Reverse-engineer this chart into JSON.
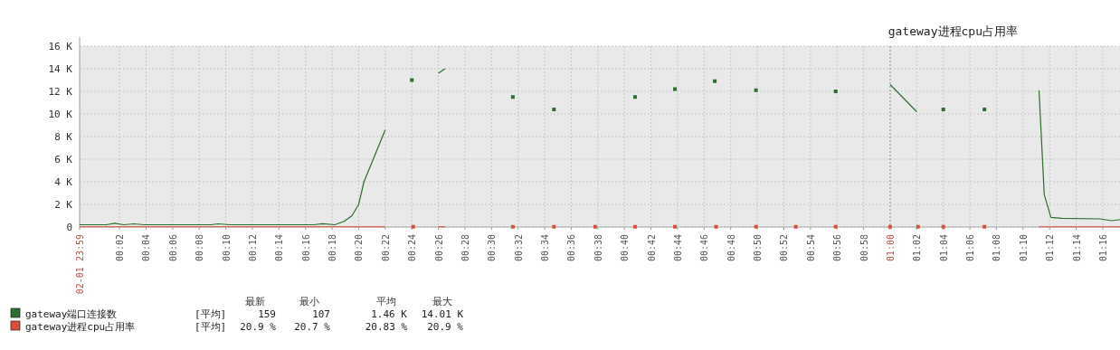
{
  "chart_data": {
    "type": "line",
    "title": "gateway进程cpu占用率",
    "xlim": [
      -0.0167,
      1.2883
    ],
    "xticks": [
      {
        "value": -0.0167,
        "label": "02-01 23:59"
      },
      {
        "value": 0.0333,
        "label": "00:02"
      },
      {
        "value": 0.0667,
        "label": "00:04"
      },
      {
        "value": 0.1,
        "label": "00:06"
      },
      {
        "value": 0.1333,
        "label": "00:08"
      },
      {
        "value": 0.1667,
        "label": "00:10"
      },
      {
        "value": 0.2,
        "label": "00:12"
      },
      {
        "value": 0.2333,
        "label": "00:14"
      },
      {
        "value": 0.2667,
        "label": "00:16"
      },
      {
        "value": 0.3,
        "label": "00:18"
      },
      {
        "value": 0.3333,
        "label": "00:20"
      },
      {
        "value": 0.3667,
        "label": "00:22"
      },
      {
        "value": 0.4,
        "label": "00:24"
      },
      {
        "value": 0.4333,
        "label": "00:26"
      },
      {
        "value": 0.4667,
        "label": "00:28"
      },
      {
        "value": 0.5,
        "label": "00:30"
      },
      {
        "value": 0.5333,
        "label": "00:32"
      },
      {
        "value": 0.5667,
        "label": "00:34"
      },
      {
        "value": 0.6,
        "label": "00:36"
      },
      {
        "value": 0.6333,
        "label": "00:38"
      },
      {
        "value": 0.6667,
        "label": "00:40"
      },
      {
        "value": 0.7,
        "label": "00:42"
      },
      {
        "value": 0.7333,
        "label": "00:44"
      },
      {
        "value": 0.7667,
        "label": "00:46"
      },
      {
        "value": 0.8,
        "label": "00:48"
      },
      {
        "value": 0.8333,
        "label": "00:50"
      },
      {
        "value": 0.8667,
        "label": "00:52"
      },
      {
        "value": 0.9,
        "label": "00:54"
      },
      {
        "value": 0.9333,
        "label": "00:56"
      },
      {
        "value": 0.9667,
        "label": "00:58"
      },
      {
        "value": 1,
        "label": "01:00"
      },
      {
        "value": 1.0333,
        "label": "01:02"
      },
      {
        "value": 1.0667,
        "label": "01:04"
      },
      {
        "value": 1.1,
        "label": "01:06"
      },
      {
        "value": 1.1333,
        "label": "01:08"
      },
      {
        "value": 1.1667,
        "label": "01:10"
      },
      {
        "value": 1.2,
        "label": "01:12"
      },
      {
        "value": 1.2333,
        "label": "01:14"
      },
      {
        "value": 1.2667,
        "label": "01:16"
      }
    ],
    "ylim": [
      0,
      16000
    ],
    "yticks": [
      {
        "value": 0,
        "label": "0"
      },
      {
        "value": 2000,
        "label": "2 K"
      },
      {
        "value": 4000,
        "label": "4 K"
      },
      {
        "value": 6000,
        "label": "6 K"
      },
      {
        "value": 8000,
        "label": "8 K"
      },
      {
        "value": 10000,
        "label": "10 K"
      },
      {
        "value": 12000,
        "label": "12 K"
      },
      {
        "value": 14000,
        "label": "14 K"
      },
      {
        "value": 16000,
        "label": "16 K"
      }
    ],
    "grid": true,
    "legend": "bottom left",
    "ref_lines": [
      {
        "axis": "x",
        "value": 1,
        "color": "#999999",
        "line_style": "dotted"
      }
    ],
    "series": [
      {
        "name": "gateway端口连接数",
        "color": "#2e6e2e",
        "x": [
          -0.0167,
          0.0167,
          0.0275,
          0.0383,
          0.0517,
          0.0633,
          0.1483,
          0.1567,
          0.1717,
          0.2767,
          0.2883,
          0.3033,
          0.315,
          0.325,
          0.3333,
          0.34,
          0.3667,
          null,
          0.4,
          null,
          0.4333,
          0.4417,
          null,
          0.5267,
          null,
          0.5783,
          null,
          0.68,
          null,
          0.73,
          null,
          0.78,
          null,
          0.8317,
          null,
          0.9317,
          null,
          1.0,
          1.0333,
          null,
          1.0667,
          null,
          1.1183,
          null,
          1.1867,
          1.1933,
          1.2017,
          1.215,
          1.2633,
          1.2783,
          1.2883
        ],
        "values": [
          200,
          200,
          330,
          200,
          280,
          200,
          200,
          280,
          200,
          200,
          290,
          200,
          500,
          1000,
          2000,
          4000,
          8600,
          null,
          13000,
          null,
          13600,
          14000,
          null,
          11500,
          null,
          10400,
          null,
          11500,
          null,
          12200,
          null,
          12900,
          null,
          12100,
          null,
          12000,
          null,
          12600,
          10200,
          null,
          10400,
          null,
          10400,
          null,
          12100,
          2850,
          850,
          770,
          720,
          560,
          660
        ]
      },
      {
        "name": "gateway进程cpu占用率",
        "color": "#d9503a",
        "x": [
          -0.0167,
          0.3667,
          null,
          0.4017,
          null,
          0.4333,
          0.4417,
          null,
          0.5267,
          null,
          0.5783,
          null,
          0.63,
          null,
          0.68,
          null,
          0.73,
          null,
          0.7817,
          null,
          0.8317,
          null,
          0.8817,
          null,
          0.9317,
          null,
          1.0,
          null,
          1.035,
          null,
          1.0667,
          null,
          1.1183,
          null,
          1.1867,
          1.2883
        ],
        "values": [
          20.9,
          20.9,
          null,
          20.9,
          null,
          20.9,
          20.9,
          null,
          20.9,
          null,
          20.9,
          null,
          20.9,
          null,
          20.9,
          null,
          20.9,
          null,
          20.9,
          null,
          20.9,
          null,
          20.9,
          null,
          20.9,
          null,
          20.9,
          null,
          20.9,
          null,
          20.9,
          null,
          20.9,
          null,
          20.9,
          20.9
        ]
      }
    ],
    "annotations": [
      "最新",
      "最小",
      "平均",
      "最大",
      "[平均]",
      "159",
      "107",
      "1.46 K",
      "14.01 K",
      "[平均]",
      "20.9 %",
      "20.7 %",
      "20.83 %",
      "20.9 %"
    ]
  }
}
